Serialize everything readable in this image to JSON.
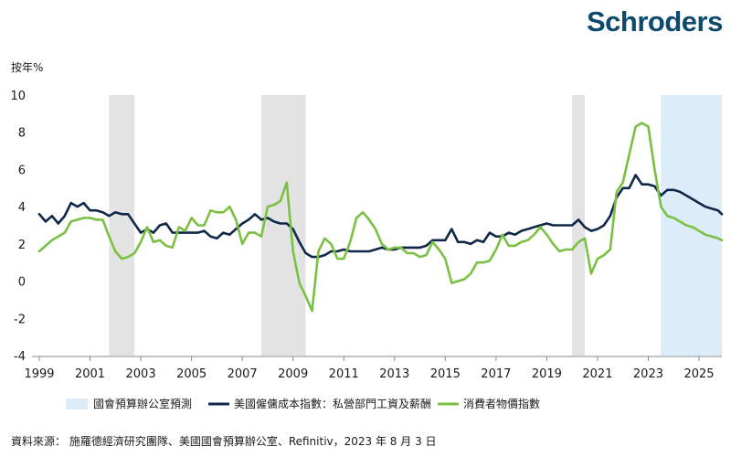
{
  "brand": {
    "logo_text": "Schroders",
    "color": "#0d4a6b"
  },
  "source_note": "資料來源： 施羅德經濟研究團隊、美國國會預算辦公室、Refinitiv，2023 年 8 月 3 日",
  "chart_data": {
    "type": "line",
    "ylabel": "按年%",
    "ylim": [
      -4,
      10
    ],
    "yticks": [
      10,
      8,
      6,
      4,
      2,
      0,
      -2,
      -4
    ],
    "xlim": [
      1999,
      2025.9
    ],
    "xticks": [
      1999,
      2001,
      2003,
      2005,
      2007,
      2009,
      2011,
      2013,
      2015,
      2017,
      2019,
      2021,
      2023,
      2025
    ],
    "grid": false,
    "recession_bands": [
      [
        2001.75,
        2002.75
      ],
      [
        2007.75,
        2009.5
      ],
      [
        2020.0,
        2020.5
      ]
    ],
    "forecast_band": [
      2023.5,
      2025.9
    ],
    "colors": {
      "recession": "#e3e3e3",
      "forecast": "#dcecf9",
      "eci": "#0f2849",
      "cpi": "#7ac143"
    },
    "legend": {
      "forecast_label": "國會預算辦公室預測",
      "position": "bottom"
    },
    "series": [
      {
        "name": "美國僱傭成本指數：私營部門工資及薪酬",
        "color": "#0f2849",
        "points": [
          [
            1999.0,
            3.6
          ],
          [
            1999.25,
            3.2
          ],
          [
            1999.5,
            3.5
          ],
          [
            1999.75,
            3.1
          ],
          [
            2000.0,
            3.5
          ],
          [
            2000.25,
            4.2
          ],
          [
            2000.5,
            4.0
          ],
          [
            2000.75,
            4.2
          ],
          [
            2001.0,
            3.8
          ],
          [
            2001.25,
            3.8
          ],
          [
            2001.5,
            3.7
          ],
          [
            2001.75,
            3.5
          ],
          [
            2002.0,
            3.7
          ],
          [
            2002.25,
            3.6
          ],
          [
            2002.5,
            3.6
          ],
          [
            2002.75,
            3.1
          ],
          [
            2003.0,
            2.6
          ],
          [
            2003.25,
            2.8
          ],
          [
            2003.5,
            2.6
          ],
          [
            2003.75,
            3.0
          ],
          [
            2004.0,
            3.1
          ],
          [
            2004.25,
            2.6
          ],
          [
            2004.5,
            2.6
          ],
          [
            2004.75,
            2.6
          ],
          [
            2005.0,
            2.6
          ],
          [
            2005.25,
            2.6
          ],
          [
            2005.5,
            2.7
          ],
          [
            2005.75,
            2.4
          ],
          [
            2006.0,
            2.3
          ],
          [
            2006.25,
            2.6
          ],
          [
            2006.5,
            2.5
          ],
          [
            2006.75,
            2.8
          ],
          [
            2007.0,
            3.1
          ],
          [
            2007.25,
            3.3
          ],
          [
            2007.5,
            3.6
          ],
          [
            2007.75,
            3.3
          ],
          [
            2008.0,
            3.4
          ],
          [
            2008.25,
            3.2
          ],
          [
            2008.5,
            3.1
          ],
          [
            2008.75,
            3.1
          ],
          [
            2009.0,
            2.8
          ],
          [
            2009.25,
            2.1
          ],
          [
            2009.5,
            1.5
          ],
          [
            2009.75,
            1.3
          ],
          [
            2010.0,
            1.3
          ],
          [
            2010.25,
            1.4
          ],
          [
            2010.5,
            1.6
          ],
          [
            2010.75,
            1.6
          ],
          [
            2011.0,
            1.7
          ],
          [
            2011.25,
            1.6
          ],
          [
            2011.5,
            1.6
          ],
          [
            2011.75,
            1.6
          ],
          [
            2012.0,
            1.6
          ],
          [
            2012.25,
            1.7
          ],
          [
            2012.5,
            1.8
          ],
          [
            2012.75,
            1.7
          ],
          [
            2013.0,
            1.7
          ],
          [
            2013.25,
            1.8
          ],
          [
            2013.5,
            1.8
          ],
          [
            2013.75,
            1.8
          ],
          [
            2014.0,
            1.8
          ],
          [
            2014.25,
            1.9
          ],
          [
            2014.5,
            2.2
          ],
          [
            2014.75,
            2.2
          ],
          [
            2015.0,
            2.2
          ],
          [
            2015.25,
            2.8
          ],
          [
            2015.5,
            2.1
          ],
          [
            2015.75,
            2.1
          ],
          [
            2016.0,
            2.0
          ],
          [
            2016.25,
            2.2
          ],
          [
            2016.5,
            2.1
          ],
          [
            2016.75,
            2.6
          ],
          [
            2017.0,
            2.4
          ],
          [
            2017.25,
            2.4
          ],
          [
            2017.5,
            2.6
          ],
          [
            2017.75,
            2.5
          ],
          [
            2018.0,
            2.7
          ],
          [
            2018.25,
            2.8
          ],
          [
            2018.5,
            2.9
          ],
          [
            2018.75,
            3.0
          ],
          [
            2019.0,
            3.1
          ],
          [
            2019.25,
            3.0
          ],
          [
            2019.5,
            3.0
          ],
          [
            2019.75,
            3.0
          ],
          [
            2020.0,
            3.0
          ],
          [
            2020.25,
            3.3
          ],
          [
            2020.5,
            2.9
          ],
          [
            2020.75,
            2.7
          ],
          [
            2021.0,
            2.8
          ],
          [
            2021.25,
            3.0
          ],
          [
            2021.5,
            3.5
          ],
          [
            2021.75,
            4.5
          ],
          [
            2022.0,
            5.0
          ],
          [
            2022.25,
            5.0
          ],
          [
            2022.5,
            5.7
          ],
          [
            2022.75,
            5.2
          ],
          [
            2023.0,
            5.2
          ],
          [
            2023.25,
            5.1
          ],
          [
            2023.5,
            4.6
          ],
          [
            2023.75,
            4.9
          ],
          [
            2024.0,
            4.9
          ],
          [
            2024.25,
            4.8
          ],
          [
            2024.5,
            4.6
          ],
          [
            2024.75,
            4.4
          ],
          [
            2025.0,
            4.2
          ],
          [
            2025.25,
            4.0
          ],
          [
            2025.5,
            3.9
          ],
          [
            2025.75,
            3.8
          ],
          [
            2025.9,
            3.6
          ]
        ]
      },
      {
        "name": "消費者物價指數",
        "color": "#7ac143",
        "points": [
          [
            1999.0,
            1.6
          ],
          [
            1999.25,
            1.9
          ],
          [
            1999.5,
            2.2
          ],
          [
            1999.75,
            2.4
          ],
          [
            2000.0,
            2.6
          ],
          [
            2000.25,
            3.2
          ],
          [
            2000.5,
            3.3
          ],
          [
            2000.75,
            3.4
          ],
          [
            2001.0,
            3.4
          ],
          [
            2001.25,
            3.3
          ],
          [
            2001.5,
            3.3
          ],
          [
            2001.75,
            2.4
          ],
          [
            2002.0,
            1.6
          ],
          [
            2002.25,
            1.2
          ],
          [
            2002.5,
            1.3
          ],
          [
            2002.75,
            1.5
          ],
          [
            2003.0,
            2.1
          ],
          [
            2003.25,
            2.9
          ],
          [
            2003.5,
            2.1
          ],
          [
            2003.75,
            2.2
          ],
          [
            2004.0,
            1.9
          ],
          [
            2004.25,
            1.8
          ],
          [
            2004.5,
            2.9
          ],
          [
            2004.75,
            2.7
          ],
          [
            2005.0,
            3.4
          ],
          [
            2005.25,
            3.0
          ],
          [
            2005.5,
            3.0
          ],
          [
            2005.75,
            3.8
          ],
          [
            2006.0,
            3.7
          ],
          [
            2006.25,
            3.7
          ],
          [
            2006.5,
            4.0
          ],
          [
            2006.75,
            3.3
          ],
          [
            2007.0,
            2.0
          ],
          [
            2007.25,
            2.6
          ],
          [
            2007.5,
            2.6
          ],
          [
            2007.75,
            2.4
          ],
          [
            2008.0,
            4.0
          ],
          [
            2008.25,
            4.1
          ],
          [
            2008.5,
            4.3
          ],
          [
            2008.75,
            5.3
          ],
          [
            2009.0,
            1.6
          ],
          [
            2009.25,
            -0.1
          ],
          [
            2009.5,
            -0.8
          ],
          [
            2009.75,
            -1.6
          ],
          [
            2010.0,
            1.6
          ],
          [
            2010.25,
            2.3
          ],
          [
            2010.5,
            2.0
          ],
          [
            2010.75,
            1.2
          ],
          [
            2011.0,
            1.2
          ],
          [
            2011.25,
            2.1
          ],
          [
            2011.5,
            3.4
          ],
          [
            2011.75,
            3.7
          ],
          [
            2012.0,
            3.3
          ],
          [
            2012.25,
            2.8
          ],
          [
            2012.5,
            2.0
          ],
          [
            2012.75,
            1.7
          ],
          [
            2013.0,
            1.8
          ],
          [
            2013.25,
            1.8
          ],
          [
            2013.5,
            1.5
          ],
          [
            2013.75,
            1.5
          ],
          [
            2014.0,
            1.3
          ],
          [
            2014.25,
            1.4
          ],
          [
            2014.5,
            2.1
          ],
          [
            2014.75,
            1.7
          ],
          [
            2015.0,
            1.2
          ],
          [
            2015.25,
            -0.1
          ],
          [
            2015.5,
            0.0
          ],
          [
            2015.75,
            0.1
          ],
          [
            2016.0,
            0.4
          ],
          [
            2016.25,
            1.0
          ],
          [
            2016.5,
            1.0
          ],
          [
            2016.75,
            1.1
          ],
          [
            2017.0,
            1.7
          ],
          [
            2017.25,
            2.5
          ],
          [
            2017.5,
            1.9
          ],
          [
            2017.75,
            1.9
          ],
          [
            2018.0,
            2.1
          ],
          [
            2018.25,
            2.2
          ],
          [
            2018.5,
            2.5
          ],
          [
            2018.75,
            2.9
          ],
          [
            2019.0,
            2.5
          ],
          [
            2019.25,
            2.0
          ],
          [
            2019.5,
            1.6
          ],
          [
            2019.75,
            1.7
          ],
          [
            2020.0,
            1.7
          ],
          [
            2020.25,
            2.1
          ],
          [
            2020.5,
            2.3
          ],
          [
            2020.75,
            0.4
          ],
          [
            2021.0,
            1.2
          ],
          [
            2021.25,
            1.4
          ],
          [
            2021.5,
            1.7
          ],
          [
            2021.75,
            4.8
          ],
          [
            2022.0,
            5.3
          ],
          [
            2022.25,
            6.8
          ],
          [
            2022.5,
            8.3
          ],
          [
            2022.75,
            8.5
          ],
          [
            2023.0,
            8.3
          ],
          [
            2023.25,
            6.0
          ],
          [
            2023.5,
            4.0
          ],
          [
            2023.75,
            3.5
          ],
          [
            2024.0,
            3.4
          ],
          [
            2024.25,
            3.2
          ],
          [
            2024.5,
            3.0
          ],
          [
            2024.75,
            2.9
          ],
          [
            2025.0,
            2.7
          ],
          [
            2025.25,
            2.5
          ],
          [
            2025.5,
            2.4
          ],
          [
            2025.75,
            2.3
          ],
          [
            2025.9,
            2.2
          ]
        ]
      }
    ]
  }
}
